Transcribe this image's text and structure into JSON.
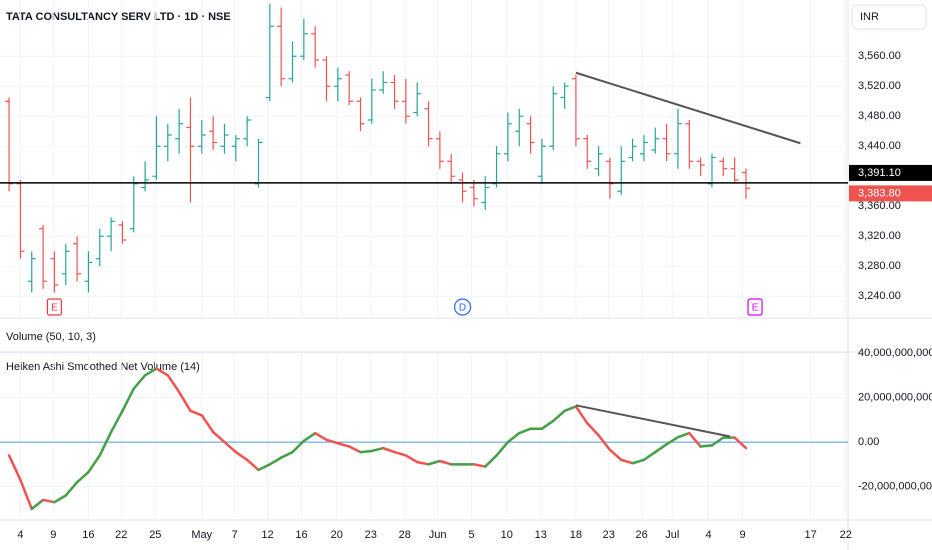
{
  "chart_data": [
    {
      "type": "ohlc",
      "title": "TATA CONSULTANCY SERV LTD · 1D · NSE",
      "currency": "INR",
      "volume_title": "Volume (50, 10, 3)",
      "open": [
        3500,
        3390,
        3260,
        3330,
        3290,
        3270,
        3310,
        3260,
        3290,
        3320,
        3335,
        3330,
        3385,
        3400,
        3440,
        3450,
        3465,
        3440,
        3460,
        3440,
        3440,
        3450,
        3390,
        3505,
        3600,
        3530,
        3560,
        3590,
        3555,
        3520,
        3535,
        3500,
        3475,
        3515,
        3525,
        3500,
        3485,
        3490,
        3450,
        3420,
        3395,
        3385,
        3365,
        3390,
        3430,
        3460,
        3470,
        3400,
        3440,
        3505,
        3530,
        3450,
        3410,
        3420,
        3380,
        3425,
        3430,
        3435,
        3450,
        3430,
        3470,
        3420,
        3390,
        3420,
        3410,
        3405
      ],
      "high": [
        3505,
        3395,
        3300,
        3335,
        3300,
        3310,
        3320,
        3300,
        3330,
        3345,
        3340,
        3400,
        3420,
        3480,
        3470,
        3490,
        3505,
        3475,
        3480,
        3470,
        3455,
        3480,
        3450,
        3630,
        3625,
        3580,
        3610,
        3600,
        3560,
        3545,
        3540,
        3505,
        3530,
        3540,
        3535,
        3530,
        3525,
        3500,
        3460,
        3430,
        3405,
        3395,
        3400,
        3440,
        3485,
        3490,
        3480,
        3450,
        3520,
        3525,
        3535,
        3455,
        3440,
        3425,
        3440,
        3450,
        3455,
        3465,
        3470,
        3490,
        3475,
        3425,
        3430,
        3425,
        3425,
        3410
      ],
      "low": [
        3380,
        3290,
        3245,
        3250,
        3245,
        3255,
        3260,
        3245,
        3280,
        3300,
        3310,
        3325,
        3380,
        3395,
        3420,
        3430,
        3365,
        3430,
        3435,
        3430,
        3420,
        3440,
        3385,
        3500,
        3520,
        3525,
        3555,
        3545,
        3500,
        3500,
        3495,
        3460,
        3470,
        3510,
        3490,
        3470,
        3480,
        3440,
        3410,
        3390,
        3365,
        3360,
        3355,
        3385,
        3420,
        3440,
        3430,
        3390,
        3435,
        3490,
        3440,
        3410,
        3400,
        3370,
        3375,
        3420,
        3420,
        3430,
        3420,
        3410,
        3410,
        3400,
        3385,
        3400,
        3390,
        3370
      ],
      "close": [
        3390,
        3300,
        3290,
        3260,
        3255,
        3300,
        3270,
        3285,
        3320,
        3340,
        3315,
        3390,
        3395,
        3440,
        3455,
        3470,
        3440,
        3455,
        3445,
        3455,
        3450,
        3475,
        3445,
        3600,
        3530,
        3560,
        3590,
        3555,
        3520,
        3530,
        3500,
        3470,
        3515,
        3525,
        3500,
        3480,
        3510,
        3450,
        3420,
        3400,
        3380,
        3370,
        3385,
        3430,
        3470,
        3480,
        3445,
        3440,
        3510,
        3520,
        3450,
        3420,
        3430,
        3390,
        3420,
        3440,
        3445,
        3450,
        3430,
        3470,
        3420,
        3415,
        3425,
        3410,
        3395,
        3384
      ],
      "up_color": "#26a69a",
      "down_color": "#ef5350",
      "xlim": [
        -0.8,
        74
      ],
      "ylim": [
        3211,
        3635
      ],
      "yticks": [
        {
          "value": 3560,
          "label": "3,560.00"
        },
        {
          "value": 3520,
          "label": "3,520.00"
        },
        {
          "value": 3480,
          "label": "3,480.00"
        },
        {
          "value": 3440,
          "label": "3,440.00"
        },
        {
          "value": 3360,
          "label": "3,360.00"
        },
        {
          "value": 3320,
          "label": "3,320.00"
        },
        {
          "value": 3280,
          "label": "3,280.00"
        },
        {
          "value": 3240,
          "label": "3,240.00"
        }
      ],
      "xticks": [
        {
          "value": 1.0,
          "label": "4"
        },
        {
          "value": 3.9,
          "label": "9"
        },
        {
          "value": 7.0,
          "label": "16"
        },
        {
          "value": 9.9,
          "label": "22"
        },
        {
          "value": 12.9,
          "label": "25"
        },
        {
          "value": 17.0,
          "label": "May"
        },
        {
          "value": 19.9,
          "label": "7"
        },
        {
          "value": 22.8,
          "label": "12"
        },
        {
          "value": 25.8,
          "label": "16"
        },
        {
          "value": 28.9,
          "label": "20"
        },
        {
          "value": 31.9,
          "label": "23"
        },
        {
          "value": 34.9,
          "label": "28"
        },
        {
          "value": 37.8,
          "label": "Jun"
        },
        {
          "value": 40.8,
          "label": "5"
        },
        {
          "value": 43.9,
          "label": "10"
        },
        {
          "value": 46.9,
          "label": "13"
        },
        {
          "value": 50.0,
          "label": "18"
        },
        {
          "value": 52.9,
          "label": "23"
        },
        {
          "value": 55.8,
          "label": "26"
        },
        {
          "value": 58.5,
          "label": "Jul"
        },
        {
          "value": 61.7,
          "label": "4"
        },
        {
          "value": 64.7,
          "label": "9"
        },
        {
          "value": 70.7,
          "label": "17"
        },
        {
          "value": 73.8,
          "label": "22"
        }
      ],
      "price_labels": [
        {
          "value": 3391.1,
          "label": "3,391.10",
          "color": "#000000"
        },
        {
          "value": 3383.8,
          "label": "3,383.80",
          "color": "#ef5350"
        }
      ],
      "hline": 3391.1,
      "trendline": {
        "x": [
          50,
          69.8
        ],
        "y": [
          3538,
          3444
        ],
        "color": "#555555"
      },
      "events": [
        {
          "label": "E",
          "x": 4,
          "color": "#f23645",
          "shape": "square"
        },
        {
          "label": "D",
          "x": 40,
          "color": "#2962ff",
          "shape": "circle"
        },
        {
          "label": "E",
          "x": 65.8,
          "color": "#d500f9",
          "shape": "square"
        }
      ],
      "grid": true
    },
    {
      "type": "line",
      "title": "Heiken Ashi Smoothed Net Volume (14)",
      "values": [
        -6000000000,
        -17000000000,
        -30000000000,
        -26000000000,
        -27000000000,
        -24000000000,
        -18000000000,
        -13500000000,
        -6000000000,
        4500000000,
        14000000000,
        24000000000,
        30000000000,
        33000000000,
        30000000000,
        22500000000,
        14000000000,
        12000000000,
        4500000000,
        0,
        -4500000000,
        -8000000000,
        -12500000000,
        -10000000000,
        -7000000000,
        -4500000000,
        500000000,
        4000000000,
        1000000000,
        -500000000,
        -2000000000,
        -4500000000,
        -4000000000,
        -2700000000,
        -4500000000,
        -6000000000,
        -9000000000,
        -10000000000,
        -8500000000,
        -10000000000,
        -10000000000,
        -10000000000,
        -11000000000,
        -6000000000,
        0,
        4000000000,
        6000000000,
        6000000000,
        9500000000,
        14000000000,
        16000000000,
        8500000000,
        3000000000,
        -3500000000,
        -8000000000,
        -9500000000,
        -8000000000,
        -4500000000,
        -1000000000,
        2200000000,
        4000000000,
        -2000000000,
        -1500000000,
        2000000000,
        2000000000,
        -2700000000
      ],
      "up_color": "#43a047",
      "down_color": "#ef5350",
      "xlim": [
        -0.8,
        74
      ],
      "ylim": [
        -35000000000,
        40000000000
      ],
      "yticks": [
        {
          "value": 40000000000,
          "label": "40,000,000,000.00"
        },
        {
          "value": 20000000000,
          "label": "20,000,000,000.00"
        },
        {
          "value": 0,
          "label": "0.00"
        },
        {
          "value": -20000000000,
          "label": "-20,000,000,000.00"
        }
      ],
      "hline": 0,
      "hline_color": "#4a9fe0",
      "trendline": {
        "x": [
          50,
          63.6
        ],
        "y": [
          16500000000,
          2500000000
        ],
        "color": "#555555"
      },
      "grid": true
    }
  ]
}
